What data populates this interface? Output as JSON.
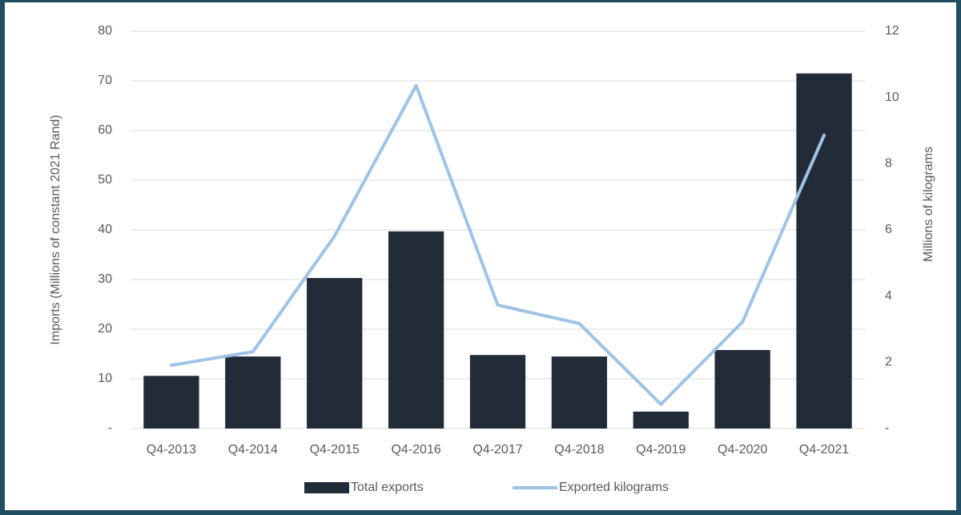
{
  "chart_data": {
    "type": "bar_line",
    "categories": [
      "Q4-2013",
      "Q4-2014",
      "Q4-2015",
      "Q4-2016",
      "Q4-2017",
      "Q4-2018",
      "Q4-2019",
      "Q4-2020",
      "Q4-2021"
    ],
    "series": [
      {
        "name": "Total exports",
        "color": "#222b38",
        "type": "bar",
        "values": [
          10.6,
          14.5,
          30.3,
          39.7,
          14.8,
          14.5,
          3.4,
          15.8,
          71.5
        ]
      },
      {
        "name": "Exported kilograms",
        "color": "#9dc3e6",
        "type": "line",
        "axis": "y2",
        "values": [
          1.91,
          2.32,
          5.81,
          10.36,
          3.73,
          3.17,
          0.73,
          3.22,
          8.86
        ]
      }
    ],
    "ylabel": "Imports (Millions of constant 2021 Rand)",
    "y2label": "Millions of kilograms",
    "ylim": [
      0,
      80
    ],
    "yticks": [
      {
        "value": 0,
        "label": "-"
      },
      10,
      20,
      30,
      40,
      50,
      60,
      70,
      80
    ],
    "y2lim": [
      0,
      12
    ],
    "y2ticks": [
      {
        "value": 0,
        "label": "-"
      },
      2,
      4,
      6,
      8,
      10,
      12
    ],
    "grid": true,
    "legend": "bottom"
  }
}
